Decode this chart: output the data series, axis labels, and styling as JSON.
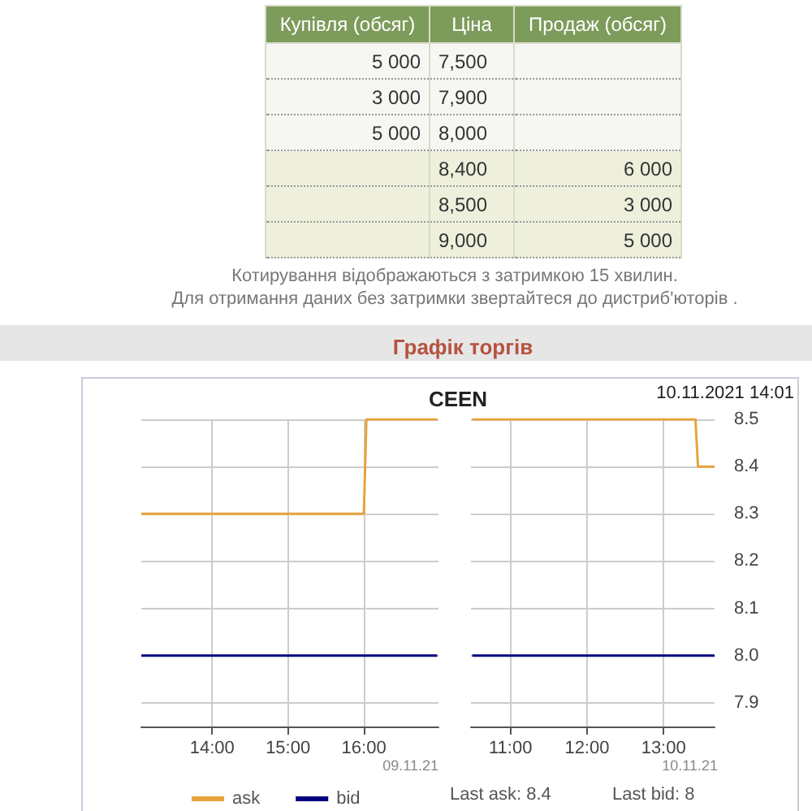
{
  "chart_data": [
    {
      "type": "other",
      "categories": [
        "Купівля (обсяг)",
        "Ціна",
        "Продаж (обсяг)"
      ],
      "cell_labels": [
        [
          "5 000",
          "7,500",
          null
        ],
        [
          "3 000",
          "7,900",
          null
        ],
        [
          "5 000",
          "8,000",
          null
        ],
        [
          null,
          "8,400",
          "6 000"
        ],
        [
          null,
          "8,500",
          "3 000"
        ],
        [
          null,
          "9,000",
          "5 000"
        ]
      ],
      "annotations": [
        "Котирування відображаються з затримкою 15 хвилин.",
        "Для отримання даних без затримки звертайтеся до дистриб'юторів ."
      ]
    },
    {
      "type": "line",
      "title": "Графік торгів",
      "subtitle": "CEEN",
      "annotations": [
        "10.11.2021 14:01",
        "09.11.21"
      ],
      "xlim": [
        "2021-11-09T13:04",
        "2021-11-09T16:59"
      ],
      "xticks": [
        {
          "value": "2021-11-09T14:00",
          "label": "14:00"
        },
        {
          "value": "2021-11-09T15:00",
          "label": "15:00"
        },
        {
          "value": "2021-11-09T16:00",
          "label": "16:00"
        }
      ],
      "ylim": [
        7.85,
        8.5
      ],
      "yticks": [
        7.9,
        8,
        8.1,
        8.2,
        8.3,
        8.4,
        8.5
      ],
      "tick_labels": "x",
      "grid": true,
      "legend": "bottom left",
      "marker": "none",
      "series": [
        {
          "name": "ask",
          "color": "#e8a33d",
          "x": [
            "2021-11-09T13:04",
            "2021-11-09T16:00",
            "2021-11-09T16:02",
            "2021-11-09T16:58"
          ],
          "values": [
            8.3,
            8.3,
            8.5,
            8.5
          ]
        },
        {
          "name": "bid",
          "color": "#000080",
          "x": [
            "2021-11-09T13:04",
            "2021-11-09T16:58"
          ],
          "values": [
            8,
            8
          ]
        }
      ]
    },
    {
      "type": "line",
      "annotations": [
        "10.11.21",
        "Last ask: 8.4",
        "Last bid: 8"
      ],
      "xlim": [
        "2021-11-10T10:29",
        "2021-11-10T13:40"
      ],
      "xticks": [
        {
          "value": "2021-11-10T11:00",
          "label": "11:00"
        },
        {
          "value": "2021-11-10T12:00",
          "label": "12:00"
        },
        {
          "value": "2021-11-10T13:00",
          "label": "13:00"
        }
      ],
      "ylim": [
        7.85,
        8.5
      ],
      "yticks": [
        7.9,
        {
          "value": 8,
          "label": "8.0"
        },
        8.1,
        8.2,
        8.3,
        8.4,
        8.5
      ],
      "grid": true,
      "marker": "none",
      "series": [
        {
          "color": "#e8a33d",
          "x": [
            "2021-11-10T10:30",
            "2021-11-10T13:25",
            "2021-11-10T13:27",
            "2021-11-10T13:40"
          ],
          "values": [
            8.5,
            8.5,
            8.4,
            8.4
          ]
        },
        {
          "color": "#000080",
          "x": [
            "2021-11-10T10:30",
            "2021-11-10T13:40"
          ],
          "values": [
            8,
            8
          ]
        }
      ]
    }
  ]
}
